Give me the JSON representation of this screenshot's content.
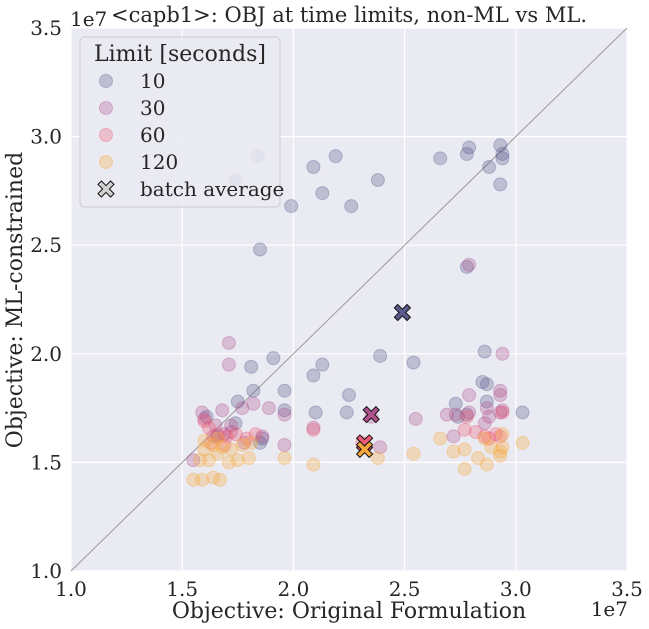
{
  "chart_data": {
    "type": "scatter",
    "title": "<capb1>: OBJ at time limits, non-ML vs ML.",
    "xlabel": "Objective: Original Formulation",
    "ylabel": "Objective: ML-constrained",
    "x_offset_label": "1e7",
    "y_offset_label": "1e7",
    "xlim": [
      1.0,
      3.5
    ],
    "ylim": [
      1.0,
      3.5
    ],
    "x_ticks": [
      1.0,
      1.5,
      2.0,
      2.5,
      3.0,
      3.5
    ],
    "x_tick_labels": [
      "1.0",
      "1.5",
      "2.0",
      "2.5",
      "3.0",
      "3.5"
    ],
    "y_ticks": [
      1.0,
      1.5,
      2.0,
      2.5,
      3.0,
      3.5
    ],
    "y_tick_labels": [
      "1.0",
      "1.5",
      "2.0",
      "2.5",
      "3.0",
      "3.5"
    ],
    "grid": true,
    "diagonal_reference": [
      [
        1.0,
        1.0
      ],
      [
        3.5,
        3.5
      ]
    ],
    "legend": {
      "title": "Limit [seconds]",
      "position": "top-left",
      "entries": [
        {
          "label": "10",
          "color": "#5b5a8c",
          "marker": "circle"
        },
        {
          "label": "30",
          "color": "#b0528f",
          "marker": "circle"
        },
        {
          "label": "60",
          "color": "#ed5a75",
          "marker": "circle"
        },
        {
          "label": "120",
          "color": "#f7a83c",
          "marker": "circle"
        },
        {
          "label": "batch average",
          "color": "#d0d0d0",
          "marker": "x"
        }
      ]
    },
    "series": [
      {
        "name": "10",
        "color": "#5b5a8c",
        "points": [
          [
            1.74,
            2.8
          ],
          [
            1.84,
            2.91
          ],
          [
            1.99,
            2.68
          ],
          [
            2.09,
            2.86
          ],
          [
            2.13,
            2.74
          ],
          [
            2.19,
            2.91
          ],
          [
            2.26,
            2.68
          ],
          [
            2.38,
            2.8
          ],
          [
            2.66,
            2.9
          ],
          [
            2.78,
            2.92
          ],
          [
            2.79,
            2.95
          ],
          [
            2.88,
            2.86
          ],
          [
            2.93,
            2.96
          ],
          [
            2.94,
            2.9
          ],
          [
            2.94,
            2.92
          ],
          [
            2.93,
            2.78
          ],
          [
            1.85,
            2.48
          ],
          [
            1.75,
            1.78
          ],
          [
            1.81,
            1.94
          ],
          [
            1.91,
            1.98
          ],
          [
            1.82,
            1.83
          ],
          [
            1.96,
            1.83
          ],
          [
            2.09,
            1.9
          ],
          [
            2.13,
            1.95
          ],
          [
            2.25,
            1.81
          ],
          [
            2.39,
            1.99
          ],
          [
            2.54,
            1.96
          ],
          [
            2.78,
            2.4
          ],
          [
            2.86,
            2.01
          ],
          [
            2.73,
            1.77
          ],
          [
            2.85,
            1.87
          ],
          [
            2.87,
            1.86
          ],
          [
            2.87,
            1.78
          ],
          [
            1.86,
            1.61
          ],
          [
            1.74,
            1.68
          ],
          [
            1.96,
            1.74
          ],
          [
            2.1,
            1.73
          ],
          [
            2.24,
            1.73
          ],
          [
            2.78,
            1.72
          ],
          [
            2.74,
            1.71
          ],
          [
            3.03,
            1.73
          ],
          [
            1.61,
            1.71
          ],
          [
            1.66,
            1.62
          ],
          [
            1.85,
            1.59
          ]
        ]
      },
      {
        "name": "30",
        "color": "#b0528f",
        "points": [
          [
            1.71,
            2.05
          ],
          [
            1.71,
            1.95
          ],
          [
            2.79,
            2.41
          ],
          [
            2.94,
            2.0
          ],
          [
            2.79,
            1.81
          ],
          [
            2.93,
            1.83
          ],
          [
            2.93,
            1.81
          ],
          [
            1.59,
            1.73
          ],
          [
            1.6,
            1.7
          ],
          [
            1.65,
            1.67
          ],
          [
            1.68,
            1.74
          ],
          [
            1.72,
            1.67
          ],
          [
            1.77,
            1.75
          ],
          [
            1.82,
            1.77
          ],
          [
            1.89,
            1.75
          ],
          [
            1.96,
            1.72
          ],
          [
            1.64,
            1.62
          ],
          [
            1.69,
            1.63
          ],
          [
            1.72,
            1.64
          ],
          [
            1.78,
            1.59
          ],
          [
            1.86,
            1.62
          ],
          [
            1.96,
            1.58
          ],
          [
            2.09,
            1.66
          ],
          [
            2.35,
            1.71
          ],
          [
            2.39,
            1.57
          ],
          [
            2.55,
            1.7
          ],
          [
            2.69,
            1.72
          ],
          [
            2.73,
            1.72
          ],
          [
            2.79,
            1.73
          ],
          [
            2.87,
            1.75
          ],
          [
            2.88,
            1.71
          ],
          [
            2.93,
            1.73
          ],
          [
            2.94,
            1.74
          ],
          [
            2.86,
            1.68
          ],
          [
            2.72,
            1.62
          ],
          [
            1.55,
            1.51
          ]
        ]
      },
      {
        "name": "60",
        "color": "#ed5a75",
        "points": [
          [
            1.6,
            1.69
          ],
          [
            1.62,
            1.66
          ],
          [
            1.66,
            1.63
          ],
          [
            1.7,
            1.62
          ],
          [
            1.74,
            1.63
          ],
          [
            1.79,
            1.61
          ],
          [
            1.83,
            1.63
          ],
          [
            1.63,
            1.59
          ],
          [
            1.69,
            1.58
          ],
          [
            2.09,
            1.65
          ],
          [
            2.31,
            1.59
          ],
          [
            2.77,
            1.65
          ],
          [
            2.82,
            1.64
          ],
          [
            2.86,
            1.62
          ],
          [
            2.88,
            1.61
          ],
          [
            2.91,
            1.63
          ],
          [
            2.93,
            1.62
          ],
          [
            2.94,
            1.73
          ],
          [
            2.78,
            1.71
          ]
        ]
      },
      {
        "name": "120",
        "color": "#f7a83c",
        "points": [
          [
            1.55,
            1.42
          ],
          [
            1.59,
            1.42
          ],
          [
            1.64,
            1.43
          ],
          [
            1.67,
            1.42
          ],
          [
            1.58,
            1.51
          ],
          [
            1.62,
            1.51
          ],
          [
            1.66,
            1.54
          ],
          [
            1.71,
            1.5
          ],
          [
            1.75,
            1.51
          ],
          [
            1.8,
            1.52
          ],
          [
            1.6,
            1.56
          ],
          [
            1.64,
            1.58
          ],
          [
            1.68,
            1.57
          ],
          [
            1.72,
            1.56
          ],
          [
            1.77,
            1.58
          ],
          [
            1.81,
            1.59
          ],
          [
            1.96,
            1.52
          ],
          [
            2.09,
            1.49
          ],
          [
            2.38,
            1.52
          ],
          [
            2.54,
            1.54
          ],
          [
            2.66,
            1.61
          ],
          [
            2.72,
            1.55
          ],
          [
            2.77,
            1.56
          ],
          [
            2.77,
            1.47
          ],
          [
            2.83,
            1.52
          ],
          [
            2.87,
            1.49
          ],
          [
            2.89,
            1.57
          ],
          [
            2.93,
            1.55
          ],
          [
            2.93,
            1.53
          ],
          [
            2.94,
            1.57
          ],
          [
            3.03,
            1.59
          ],
          [
            2.94,
            1.63
          ],
          [
            2.86,
            1.61
          ],
          [
            1.6,
            1.6
          ],
          [
            1.66,
            1.61
          ]
        ]
      }
    ],
    "batch_averages": [
      {
        "name": "10",
        "color": "#5b5a8c",
        "x": 2.49,
        "y": 2.19
      },
      {
        "name": "30",
        "color": "#b0528f",
        "x": 2.35,
        "y": 1.72
      },
      {
        "name": "60",
        "color": "#ed5a75",
        "x": 2.32,
        "y": 1.59
      },
      {
        "name": "120",
        "color": "#f7a83c",
        "x": 2.32,
        "y": 1.56
      }
    ]
  }
}
